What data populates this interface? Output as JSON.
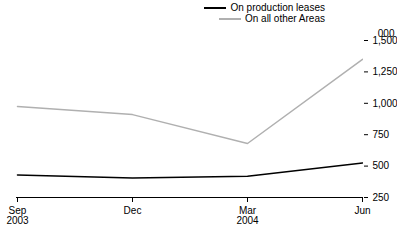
{
  "chart_data": {
    "type": "line",
    "categories": [
      "Sep 2003",
      "Dec",
      "Mar 2004",
      "Jun"
    ],
    "series": [
      {
        "name": "On production leases",
        "color": "#000000",
        "values": [
          430,
          405,
          420,
          525
        ]
      },
      {
        "name": "On all other Areas",
        "color": "#b0b0b0",
        "values": [
          975,
          910,
          680,
          1350
        ]
      }
    ],
    "y_label": "000",
    "ylim": [
      250,
      1500
    ],
    "yticks": [
      250,
      500,
      750,
      1000,
      1250,
      1500
    ],
    "grid": false,
    "legend": "top-right"
  }
}
